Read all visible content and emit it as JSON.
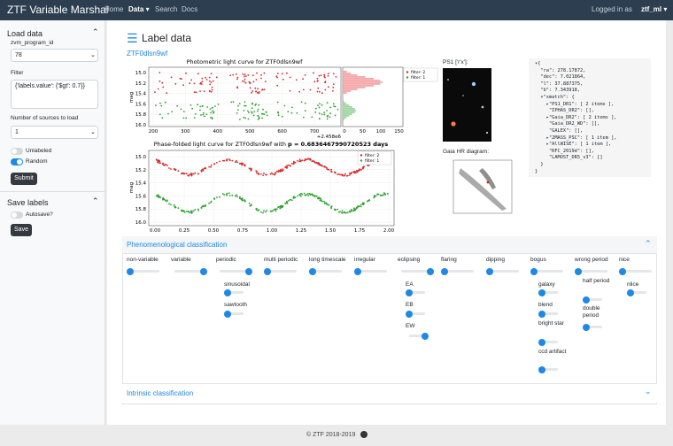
{
  "navbar": {
    "brand": "ZTF Variable Marshal",
    "links": [
      "Home",
      "Data",
      "Search",
      "Docs"
    ],
    "user_prefix": "Logged in as",
    "user": "ztf_ml"
  },
  "sidebar": {
    "load_title": "Load data",
    "program_label": "zvm_program_id",
    "program_value": "78",
    "filter_label": "Filter",
    "filter_value": "{'labels.value': {'$gt': 0.7}}",
    "num_label": "Number of sources to load",
    "num_value": "1",
    "toggles": [
      {
        "label": "Unlabeled",
        "on": false
      },
      {
        "label": "Random",
        "on": true
      }
    ],
    "submit": "Submit",
    "save_title": "Save labels",
    "autosave": {
      "label": "Autosave?",
      "on": false
    },
    "save": "Save"
  },
  "main": {
    "title": "Label data",
    "source_id": "ZTF0dlsn9wf",
    "lc_plot": {
      "title": "Photometric light curve for ZTF0dlsn9wf",
      "ylabel": "mag",
      "yticks": [
        "15.0",
        "15.2",
        "15.4",
        "15.6",
        "15.8",
        "16.0"
      ],
      "xticks": [
        "200",
        "300",
        "400",
        "500",
        "600",
        "700"
      ],
      "offset": "+2.458e6",
      "hist_xticks": [
        "0",
        "50",
        "100",
        "150"
      ],
      "legend": [
        "filter: 2",
        "filter: 1"
      ]
    },
    "folded_plot": {
      "title": "Phase-folded light curve for ZTF0dlsn9wf with",
      "title_bold": "p = 0.6836467990720523 days",
      "ylabel": "mag",
      "yticks": [
        "15.0",
        "15.2",
        "15.4",
        "15.6",
        "15.8",
        "16.0"
      ],
      "xticks": [
        "0.00",
        "0.25",
        "0.50",
        "0.75",
        "1.00",
        "1.25",
        "1.50",
        "1.75",
        "2.00"
      ],
      "legend": [
        "filter: 2",
        "filter: 1"
      ]
    },
    "ps1_label": "PS1 ['r'x']:",
    "gaia_label": "Gaia HR diagram:",
    "json_lines": [
      "▾{",
      "  \"ra\": 278.17872,",
      "  \"dec\": 7.021864,",
      "  \"l\": 37.887375,",
      "  \"b\": 7.343918,",
      "  ▾\"xmatch\": {",
      "    ▸\"PS1_DR1\": [ 2 items ],",
      "     \"IPHAS_DR2\": [],",
      "    ▸\"Gaia_DR2\": [ 2 items ],",
      "     \"Gaia_DR2_WD\": [],",
      "     \"GALEX\": [],",
      "    ▸\"2MASS_PSC\": [ 1 item ],",
      "    ▸\"AllWISE\": [ 1 item ],",
      "     \"RFC_2019d\": [],",
      "     \"LAMOST_DR5_v3\": []",
      "  }",
      "}"
    ],
    "phenomenological": {
      "title": "Phenomenological classification",
      "classes": [
        {
          "label": "non-variable",
          "value": 0,
          "children": []
        },
        {
          "label": "variable",
          "value": 1,
          "children": []
        },
        {
          "label": "periodic",
          "value": 1,
          "children": [
            {
              "label": "sinusoidal",
              "value": 0
            },
            {
              "label": "sawtooth",
              "value": 0
            }
          ]
        },
        {
          "label": "multi periodic",
          "value": 0,
          "children": []
        },
        {
          "label": "long timescale",
          "value": 0,
          "children": []
        },
        {
          "label": "irregular",
          "value": 0,
          "children": []
        },
        {
          "label": "eclipsing",
          "value": 1,
          "children": [
            {
              "label": "EA",
              "value": 0
            },
            {
              "label": "EB",
              "value": 0
            },
            {
              "label": "EW",
              "value": 1
            }
          ]
        },
        {
          "label": "flaring",
          "value": 0,
          "children": []
        },
        {
          "label": "dipping",
          "value": 0,
          "children": []
        },
        {
          "label": "bogus",
          "value": 0,
          "children": [
            {
              "label": "galaxy",
              "value": 0
            },
            {
              "label": "blend",
              "value": 0
            },
            {
              "label": "bright star",
              "value": 0
            },
            {
              "label": "ccd artifact",
              "value": 0
            }
          ]
        },
        {
          "label": "wrong period",
          "value": 0,
          "children": [
            {
              "label": "half period",
              "value": 0
            },
            {
              "label": "double period",
              "value": 0
            }
          ]
        },
        {
          "label": "nice",
          "value": 0,
          "children": [
            {
              "label": "nlice",
              "value": 0
            }
          ]
        }
      ]
    },
    "intrinsic": {
      "title": "Intrinsic classification"
    }
  },
  "footer": "© ZTF 2018-2019"
}
